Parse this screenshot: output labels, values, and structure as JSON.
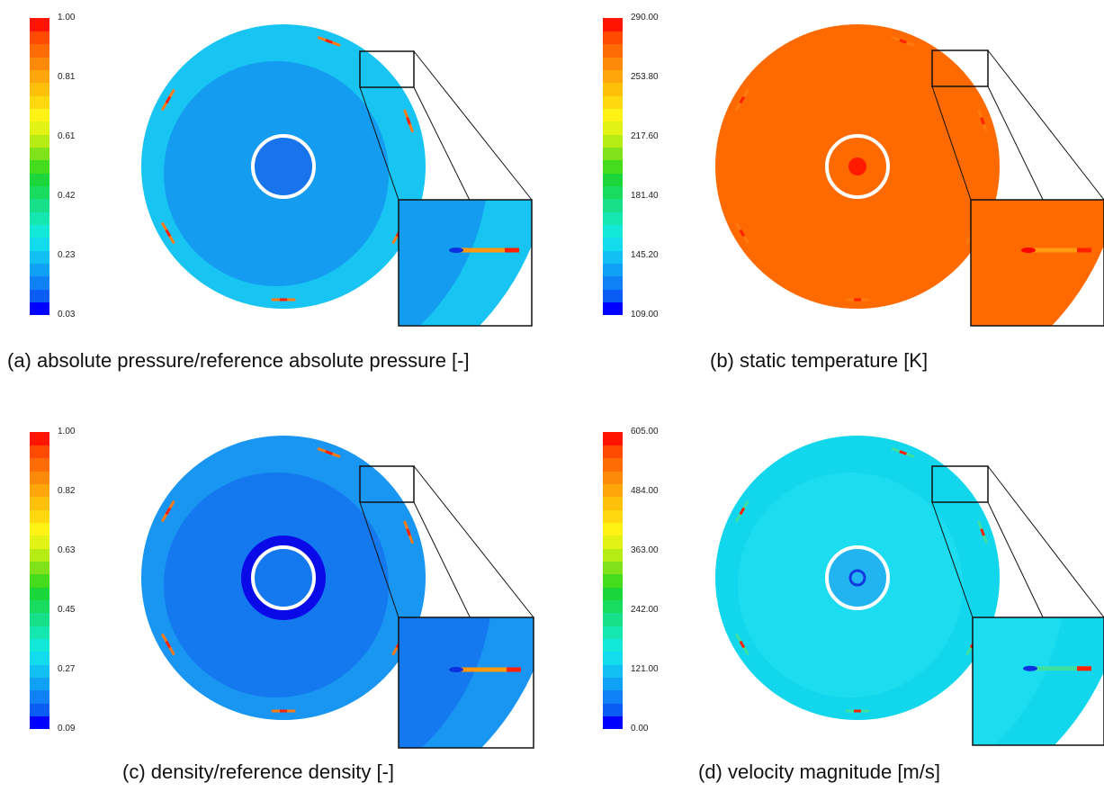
{
  "panels": [
    {
      "id": "a",
      "caption": "(a) absolute pressure/reference absolute pressure [-]",
      "ticks": [
        "1.00",
        "0.81",
        "0.61",
        "0.42",
        "0.23",
        "0.03"
      ],
      "colors": {
        "outer": "#17c4f2",
        "inner": "#149cf0",
        "core": "#1774ec",
        "core_ring": "#ffffff",
        "center": "",
        "dark_halo": ""
      }
    },
    {
      "id": "b",
      "caption": "(b) static temperature [K]",
      "ticks": [
        "290.00",
        "253.80",
        "217.60",
        "181.40",
        "145.20",
        "109.00"
      ],
      "colors": {
        "outer": "#ff6a00",
        "inner": "#ff6a00",
        "core": "#ff6a00",
        "core_ring": "#ffffff",
        "center": "#ff1a00",
        "dark_halo": ""
      }
    },
    {
      "id": "c",
      "caption": "(c) density/reference density [-]",
      "ticks": [
        "1.00",
        "0.82",
        "0.63",
        "0.45",
        "0.27",
        "0.09"
      ],
      "colors": {
        "outer": "#1896f2",
        "inner": "#1478ee",
        "core": "#1478ee",
        "core_ring": "#ffffff",
        "center": "",
        "dark_halo": "#0a0ae8"
      }
    },
    {
      "id": "d",
      "caption": "(d) velocity magnitude [m/s]",
      "ticks": [
        "605.00",
        "484.00",
        "363.00",
        "242.00",
        "121.00",
        "0.00"
      ],
      "colors": {
        "outer": "#12d6ec",
        "inner": "#1cdcf0",
        "core": "#22b4f0",
        "core_ring": "#ffffff",
        "center": "#1238e0",
        "dark_halo": ""
      }
    }
  ],
  "colormap": [
    "#0000ff",
    "#0a5cf5",
    "#0f80f5",
    "#10a0f5",
    "#12c0f5",
    "#14dcef",
    "#14e8d6",
    "#16e6b0",
    "#18e08a",
    "#19dc5e",
    "#1ad63a",
    "#44dc1c",
    "#80e21a",
    "#b6ec14",
    "#e2f214",
    "#fff214",
    "#ffd80f",
    "#ffc00a",
    "#ffa60a",
    "#ff8a0a",
    "#ff6c05",
    "#ff4a00",
    "#ff1400"
  ]
}
